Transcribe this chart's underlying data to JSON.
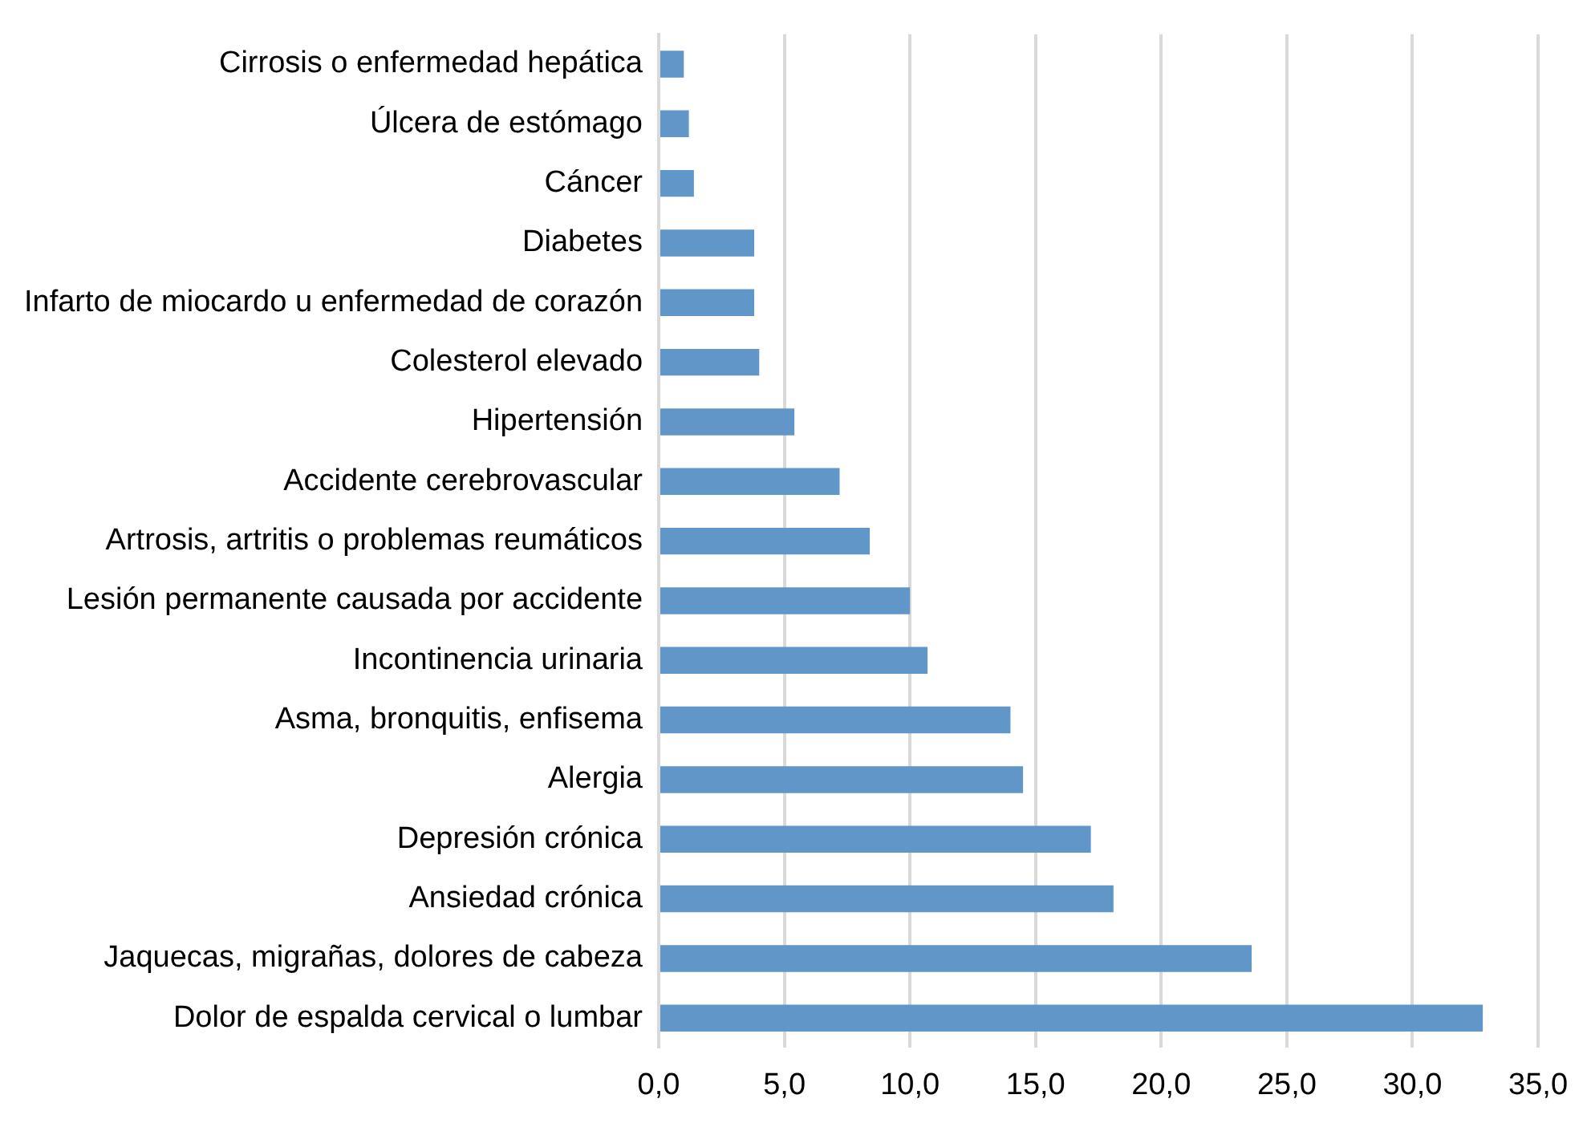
{
  "chart_data": {
    "type": "bar",
    "orientation": "horizontal",
    "categories": [
      "Cirrosis o enfermedad hepática",
      "Úlcera de estómago",
      "Cáncer",
      "Diabetes",
      "Infarto de miocardo u enfermedad de corazón",
      "Colesterol elevado",
      "Hipertensión",
      "Accidente cerebrovascular",
      "Artrosis, artritis o problemas reumáticos",
      "Lesión permanente causada por accidente",
      "Incontinencia urinaria",
      "Asma, bronquitis, enfisema",
      "Alergia",
      "Depresión crónica",
      "Ansiedad crónica",
      "Jaquecas, migrañas, dolores de cabeza",
      "Dolor de espalda cervical o lumbar"
    ],
    "values": [
      1.0,
      1.2,
      1.4,
      3.8,
      3.8,
      4.0,
      5.4,
      7.2,
      8.4,
      10.0,
      10.7,
      14.0,
      14.5,
      17.2,
      18.1,
      23.6,
      32.8
    ],
    "color": "#6096c8",
    "xlim": [
      0,
      35
    ],
    "xticks": [
      {
        "value": 0,
        "label": "0,0"
      },
      {
        "value": 5,
        "label": "5,0"
      },
      {
        "value": 10,
        "label": "10,0"
      },
      {
        "value": 15,
        "label": "15,0"
      },
      {
        "value": 20,
        "label": "20,0"
      },
      {
        "value": 25,
        "label": "25,0"
      },
      {
        "value": 30,
        "label": "30,0"
      },
      {
        "value": 35,
        "label": "35,0"
      }
    ],
    "grid": "x",
    "legend": false
  }
}
